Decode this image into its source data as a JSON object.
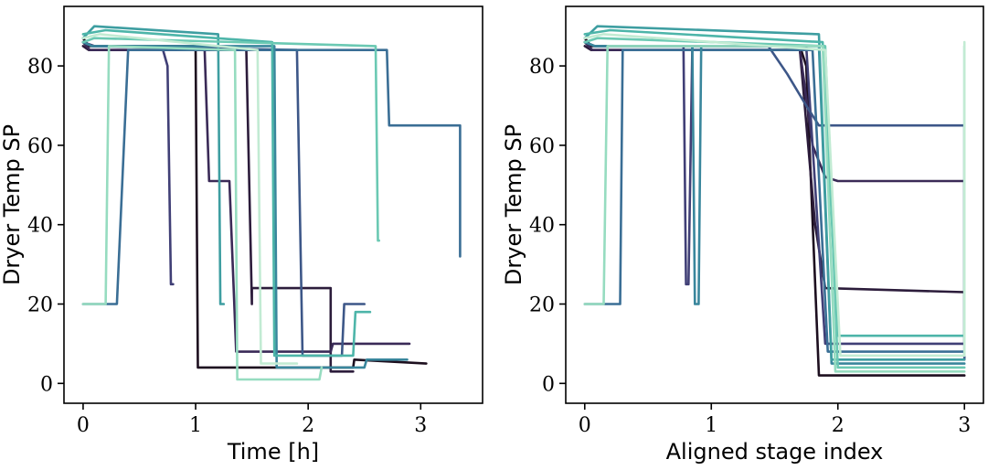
{
  "palette": [
    "#1d0f1f",
    "#2c1c3b",
    "#3a2a57",
    "#403f76",
    "#3d5788",
    "#3a6e95",
    "#39869c",
    "#3e9ea1",
    "#4db5a9",
    "#6bc9b3",
    "#96dcc0",
    "#c2ebd3"
  ],
  "chart_data": [
    {
      "type": "line",
      "title": "",
      "xlabel": "Time [h]",
      "ylabel": "Dryer Temp SP",
      "xlim": [
        -0.17,
        3.55
      ],
      "ylim": [
        -5,
        95
      ],
      "xticks": [
        0,
        1,
        2,
        3
      ],
      "yticks": [
        0,
        20,
        40,
        60,
        80
      ],
      "grid": false,
      "series": [
        {
          "values": [
            [
              0,
              87
            ],
            [
              0.05,
              85
            ],
            [
              1.0,
              85
            ],
            [
              1.02,
              4
            ],
            [
              1.05,
              4
            ],
            [
              2.4,
              4
            ],
            [
              2.41,
              6
            ],
            [
              3.05,
              5
            ]
          ]
        },
        {
          "values": [
            [
              0,
              85
            ],
            [
              0.05,
              84
            ],
            [
              1.45,
              84
            ],
            [
              1.5,
              20
            ],
            [
              1.5,
              24
            ],
            [
              2.2,
              24
            ],
            [
              2.2,
              3
            ],
            [
              2.4,
              3
            ]
          ]
        },
        {
          "values": [
            [
              0,
              86
            ],
            [
              0.06,
              84
            ],
            [
              1.08,
              84
            ],
            [
              1.12,
              51
            ],
            [
              1.3,
              51
            ],
            [
              1.36,
              8
            ],
            [
              2.2,
              8
            ],
            [
              2.22,
              10
            ],
            [
              2.9,
              10
            ]
          ]
        },
        {
          "values": [
            [
              0,
              86
            ],
            [
              0.1,
              85
            ],
            [
              0.7,
              85
            ],
            [
              0.75,
              80
            ],
            [
              0.78,
              25
            ],
            [
              0.8,
              25
            ]
          ]
        },
        {
          "values": [
            [
              0,
              86
            ],
            [
              0.08,
              85
            ],
            [
              1.9,
              84
            ],
            [
              1.95,
              7
            ],
            [
              2.3,
              7
            ],
            [
              2.32,
              20
            ],
            [
              2.5,
              20
            ]
          ]
        },
        {
          "values": [
            [
              0,
              20
            ],
            [
              0.3,
              20
            ],
            [
              0.4,
              84
            ],
            [
              2.7,
              84
            ],
            [
              2.72,
              65
            ],
            [
              3.35,
              65
            ],
            [
              3.35,
              32
            ]
          ]
        },
        {
          "values": [
            [
              0,
              86
            ],
            [
              0.08,
              85
            ],
            [
              1.7,
              85
            ],
            [
              1.72,
              4
            ],
            [
              2.5,
              4
            ],
            [
              2.52,
              6
            ],
            [
              2.88,
              6
            ]
          ]
        },
        {
          "values": [
            [
              0,
              87
            ],
            [
              0.1,
              90
            ],
            [
              1.2,
              88
            ],
            [
              1.22,
              20
            ],
            [
              1.25,
              20
            ]
          ]
        },
        {
          "values": [
            [
              0,
              88
            ],
            [
              0.2,
              89
            ],
            [
              1.68,
              86
            ],
            [
              1.7,
              7
            ],
            [
              2.4,
              7
            ],
            [
              2.42,
              18
            ],
            [
              2.55,
              18
            ]
          ]
        },
        {
          "values": [
            [
              0,
              86
            ],
            [
              0.1,
              87
            ],
            [
              2.6,
              85
            ],
            [
              2.62,
              36
            ],
            [
              2.63,
              36
            ]
          ]
        },
        {
          "values": [
            [
              0,
              20
            ],
            [
              0.2,
              20
            ],
            [
              0.23,
              85
            ],
            [
              1.35,
              84
            ],
            [
              1.37,
              1
            ],
            [
              2.1,
              1
            ],
            [
              2.12,
              4
            ]
          ]
        },
        {
          "values": [
            [
              0,
              87
            ],
            [
              0.15,
              88
            ],
            [
              1.55,
              84
            ],
            [
              1.58,
              5
            ],
            [
              1.9,
              5
            ]
          ]
        }
      ]
    },
    {
      "type": "line",
      "title": "",
      "xlabel": "Aligned stage index",
      "ylabel": "Dryer Temp SP",
      "xlim": [
        -0.15,
        3.15
      ],
      "ylim": [
        -5,
        95
      ],
      "xticks": [
        0,
        1,
        2,
        3
      ],
      "yticks": [
        0,
        20,
        40,
        60,
        80
      ],
      "grid": false,
      "series": [
        {
          "values": [
            [
              0,
              87
            ],
            [
              0.05,
              85
            ],
            [
              1.7,
              85
            ],
            [
              1.75,
              80
            ],
            [
              1.85,
              2
            ],
            [
              3,
              2
            ]
          ]
        },
        {
          "values": [
            [
              0,
              85
            ],
            [
              0.05,
              84
            ],
            [
              1.7,
              84
            ],
            [
              1.82,
              40
            ],
            [
              1.9,
              24
            ],
            [
              3,
              23
            ]
          ]
        },
        {
          "values": [
            [
              0,
              86
            ],
            [
              0.06,
              84
            ],
            [
              1.7,
              84
            ],
            [
              1.8,
              60
            ],
            [
              1.9,
              52
            ],
            [
              2.0,
              51
            ],
            [
              3,
              51
            ],
            [
              3,
              10
            ]
          ]
        },
        {
          "values": [
            [
              0,
              86
            ],
            [
              0.08,
              85
            ],
            [
              0.78,
              85
            ],
            [
              0.8,
              25
            ],
            [
              0.82,
              25
            ],
            [
              0.85,
              85
            ],
            [
              1.75,
              85
            ],
            [
              1.9,
              10
            ],
            [
              3,
              10
            ]
          ]
        },
        {
          "values": [
            [
              0,
              86
            ],
            [
              0.08,
              85
            ],
            [
              1.45,
              85
            ],
            [
              1.6,
              78
            ],
            [
              1.75,
              70
            ],
            [
              1.85,
              65
            ],
            [
              3,
              65
            ],
            [
              3,
              6
            ]
          ]
        },
        {
          "values": [
            [
              0,
              20
            ],
            [
              0.28,
              20
            ],
            [
              0.3,
              84
            ],
            [
              1.8,
              84
            ],
            [
              1.92,
              8
            ],
            [
              3,
              8
            ]
          ]
        },
        {
          "values": [
            [
              0,
              86
            ],
            [
              0.08,
              85
            ],
            [
              0.85,
              85
            ],
            [
              0.87,
              20
            ],
            [
              0.9,
              20
            ],
            [
              0.92,
              85
            ],
            [
              1.85,
              85
            ],
            [
              1.95,
              5
            ],
            [
              3,
              5
            ]
          ]
        },
        {
          "values": [
            [
              0,
              87
            ],
            [
              0.1,
              90
            ],
            [
              1.85,
              88
            ],
            [
              1.95,
              6
            ],
            [
              3,
              6
            ]
          ]
        },
        {
          "values": [
            [
              0,
              88
            ],
            [
              0.2,
              89
            ],
            [
              1.88,
              86
            ],
            [
              2.0,
              12
            ],
            [
              3,
              12
            ],
            [
              3,
              85
            ]
          ]
        },
        {
          "values": [
            [
              0,
              86
            ],
            [
              0.1,
              87
            ],
            [
              1.9,
              85
            ],
            [
              2.0,
              4
            ],
            [
              3,
              4
            ]
          ]
        },
        {
          "values": [
            [
              0,
              20
            ],
            [
              0.15,
              20
            ],
            [
              0.18,
              85
            ],
            [
              1.88,
              85
            ],
            [
              1.98,
              3
            ],
            [
              3,
              3
            ]
          ]
        },
        {
          "values": [
            [
              0,
              87
            ],
            [
              0.15,
              88
            ],
            [
              1.9,
              84
            ],
            [
              2.02,
              7
            ],
            [
              3,
              7
            ],
            [
              3,
              86
            ]
          ]
        }
      ]
    }
  ]
}
